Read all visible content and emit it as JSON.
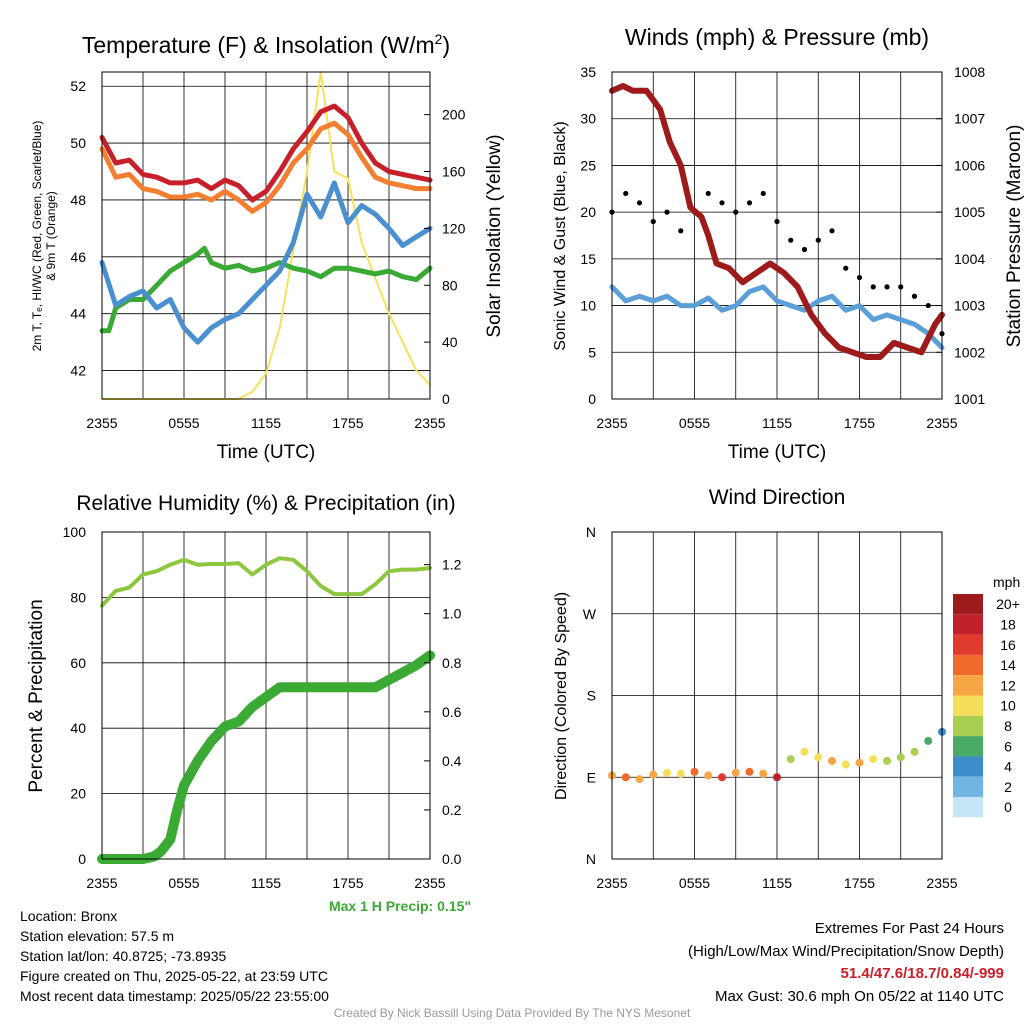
{
  "meta": {
    "location": "Location: Bronx",
    "elevation": "Station elevation: 57.5 m",
    "latlon": "Station lat/lon: 40.8725; -73.8935",
    "created": "Figure created on Thu, 2025-05-22, at 23:59 UTC",
    "recent": "Most recent data timestamp: 2025/05/22 23:55:00",
    "extremes_title": "Extremes For Past 24 Hours",
    "extremes_subtitle": "(High/Low/Max Wind/Precipitation/Snow Depth)",
    "extremes_values": "51.4/47.6/18.7/0.84/-999",
    "max_gust": "Max Gust: 30.6 mph On 05/22 at 1140 UTC",
    "credit": "Created By Nick Bassill Using Data Provided By The NYS Mesonet",
    "max_precip": "Max 1 H Precip: 0.15\""
  },
  "colors": {
    "temp2m": "#c8202a",
    "temp9m": "#f47f30",
    "dewpoint": "#3aaa35",
    "wetbulb": "#4a90cf",
    "insolation": "#f7e15a",
    "wind": "#5b9fd8",
    "gust": "#000000",
    "pressure": "#9e1b1b",
    "humidity": "#8dc63f",
    "precip": "#3aaa35"
  },
  "chart_data": [
    {
      "type": "line",
      "title": "Temperature (F) & Insolation (W/m",
      "title_sup": "2",
      "title_close": ")",
      "xlabel": "Time (UTC)",
      "ylabel_left": "2m T, Tₑ, HI/WC (Red, Green, Scarlet/Blue)",
      "ylabel_left2": "& 9m T (Orange)",
      "ylabel_right": "Solar Insolation (Yellow)",
      "x_ticks": [
        "2355",
        "0555",
        "1155",
        "1755",
        "2355"
      ],
      "y_left": {
        "min": 41,
        "max": 52.5,
        "ticks": [
          42,
          44,
          46,
          48,
          50,
          52
        ]
      },
      "y_right": {
        "min": 0,
        "max": 230,
        "ticks": [
          0,
          40,
          80,
          120,
          160,
          200
        ]
      },
      "series": [
        {
          "key": "insolation",
          "axis": "right",
          "x": [
            0,
            7,
            8,
            9,
            10,
            11,
            12,
            13,
            14,
            15,
            16,
            17,
            18,
            19,
            20,
            21,
            22,
            23,
            24
          ],
          "y": [
            0,
            0,
            0,
            0,
            0,
            5,
            18,
            50,
            105,
            160,
            230,
            160,
            155,
            110,
            85,
            60,
            40,
            20,
            10
          ]
        },
        {
          "key": "temp9m",
          "axis": "left",
          "x": [
            0,
            1,
            2,
            3,
            4,
            5,
            6,
            7,
            8,
            9,
            10,
            11,
            12,
            13,
            14,
            15,
            16,
            17,
            18,
            19,
            20,
            21,
            22,
            23,
            24
          ],
          "y": [
            49.8,
            48.8,
            48.9,
            48.4,
            48.3,
            48.1,
            48.1,
            48.2,
            48.0,
            48.3,
            48.0,
            47.6,
            47.9,
            48.5,
            49.3,
            49.8,
            50.5,
            50.7,
            50.3,
            49.5,
            48.8,
            48.6,
            48.5,
            48.4,
            48.4
          ]
        },
        {
          "key": "temp2m",
          "axis": "left",
          "x": [
            0,
            1,
            2,
            3,
            4,
            5,
            6,
            7,
            8,
            9,
            10,
            11,
            12,
            13,
            14,
            15,
            16,
            17,
            18,
            19,
            20,
            21,
            22,
            23,
            24
          ],
          "y": [
            50.2,
            49.3,
            49.4,
            48.9,
            48.8,
            48.6,
            48.6,
            48.7,
            48.4,
            48.7,
            48.5,
            48.0,
            48.3,
            49.0,
            49.8,
            50.4,
            51.1,
            51.3,
            50.9,
            50.0,
            49.3,
            49.0,
            48.9,
            48.8,
            48.7
          ]
        },
        {
          "key": "dewpoint",
          "axis": "left",
          "x": [
            0,
            0.5,
            1,
            2,
            3,
            4,
            5,
            6,
            7,
            7.5,
            8,
            9,
            10,
            11,
            12,
            13,
            14,
            15,
            16,
            17,
            18,
            19,
            20,
            21,
            22,
            23,
            24
          ],
          "y": [
            43.4,
            43.4,
            44.2,
            44.5,
            44.5,
            45.0,
            45.5,
            45.8,
            46.1,
            46.3,
            45.8,
            45.6,
            45.7,
            45.5,
            45.6,
            45.8,
            45.6,
            45.5,
            45.3,
            45.6,
            45.6,
            45.5,
            45.4,
            45.5,
            45.3,
            45.2,
            45.6
          ]
        },
        {
          "key": "wetbulb",
          "axis": "left",
          "x": [
            0,
            1,
            2,
            3,
            4,
            5,
            6,
            7,
            8,
            9,
            10,
            11,
            12,
            13,
            14,
            15,
            16,
            17,
            18,
            19,
            20,
            21,
            22,
            23,
            24
          ],
          "y": [
            45.8,
            44.3,
            44.6,
            44.8,
            44.2,
            44.5,
            43.5,
            43.0,
            43.5,
            43.8,
            44.0,
            44.5,
            45.0,
            45.5,
            46.5,
            48.2,
            47.4,
            48.6,
            47.2,
            47.8,
            47.5,
            47.0,
            46.4,
            46.7,
            47.0
          ]
        }
      ]
    },
    {
      "type": "line",
      "title": "Winds (mph) & Pressure (mb)",
      "xlabel": "Time (UTC)",
      "ylabel_left": "Sonic Wind & Gust (Blue, Black)",
      "ylabel_right": "Station Pressure (Maroon)",
      "x_ticks": [
        "2355",
        "0555",
        "1155",
        "1755",
        "2355"
      ],
      "y_left": {
        "min": 0,
        "max": 35,
        "ticks": [
          0,
          5,
          10,
          15,
          20,
          25,
          30,
          35
        ]
      },
      "y_right": {
        "min": 1001,
        "max": 1008,
        "ticks": [
          1001,
          1002,
          1003,
          1004,
          1005,
          1006,
          1007,
          1008
        ]
      },
      "series": [
        {
          "key": "wind",
          "axis": "left",
          "x": [
            0,
            1,
            2,
            3,
            4,
            5,
            6,
            7,
            8,
            9,
            10,
            11,
            12,
            13,
            14,
            15,
            16,
            17,
            18,
            19,
            20,
            21,
            22,
            23,
            24
          ],
          "y": [
            12,
            10.5,
            11,
            10.5,
            11,
            10,
            10,
            10.8,
            9.5,
            10,
            11.5,
            12,
            10.5,
            10,
            9.5,
            10.5,
            11,
            9.5,
            10,
            8.5,
            9,
            8.5,
            8,
            7,
            5.5
          ]
        },
        {
          "key": "gust",
          "axis": "left",
          "type": "scatter",
          "x": [
            0,
            1,
            2,
            3,
            4,
            5,
            6,
            7,
            8,
            9,
            10,
            11,
            12,
            13,
            14,
            15,
            16,
            17,
            18,
            19,
            20,
            21,
            22,
            23,
            24
          ],
          "y": [
            20,
            22,
            21,
            19,
            20,
            18,
            20,
            22,
            21,
            20,
            21,
            22,
            19,
            17,
            16,
            17,
            18,
            14,
            13,
            12,
            12,
            12,
            11,
            10,
            7
          ]
        },
        {
          "key": "pressure",
          "axis": "right",
          "x": [
            0,
            0.8,
            1.5,
            2.5,
            3.5,
            4.2,
            5,
            5.7,
            6.5,
            7,
            7.6,
            8.5,
            9.5,
            10.5,
            11.5,
            12.5,
            13.5,
            14.5,
            15.5,
            16.5,
            17.5,
            18.5,
            19.5,
            20.5,
            21.5,
            22.5,
            23.5,
            24
          ],
          "y": [
            1007.6,
            1007.7,
            1007.6,
            1007.6,
            1007.2,
            1006.5,
            1006.0,
            1005.1,
            1004.9,
            1004.5,
            1003.9,
            1003.8,
            1003.5,
            1003.7,
            1003.9,
            1003.7,
            1003.4,
            1002.8,
            1002.4,
            1002.1,
            1002.0,
            1001.9,
            1001.9,
            1002.2,
            1002.1,
            1002.0,
            1002.6,
            1002.8
          ]
        }
      ]
    },
    {
      "type": "line",
      "title": "Relative Humidity (%) & Precipitation (in)",
      "xlabel": "",
      "ylabel_left": "Percent & Precipitation",
      "x_ticks": [
        "2355",
        "0555",
        "1155",
        "1755",
        "2355"
      ],
      "y_left": {
        "min": 0,
        "max": 100,
        "ticks": [
          0,
          20,
          40,
          60,
          80,
          100
        ]
      },
      "y_right": {
        "min": 0,
        "max": 1.333,
        "ticks": [
          0.0,
          0.2,
          0.4,
          0.6,
          0.8,
          1.0,
          1.2
        ]
      },
      "y_right_labels": [
        "0.0",
        "0.2",
        "0.4",
        "0.6",
        "0.8",
        "1.0",
        "1.2"
      ],
      "series": [
        {
          "key": "humidity",
          "axis": "left",
          "x": [
            0,
            1,
            2,
            3,
            4,
            5,
            6,
            7,
            8,
            9,
            10,
            11,
            12,
            13,
            14,
            15,
            16,
            17,
            18,
            19,
            20,
            21,
            22,
            23,
            24
          ],
          "y": [
            77.5,
            82,
            83,
            87,
            88,
            90,
            91.5,
            90,
            90.2,
            90.2,
            90.5,
            87,
            90,
            92,
            91.5,
            88,
            83.5,
            81,
            81,
            81,
            84,
            88,
            88.5,
            88.5,
            89
          ]
        },
        {
          "key": "precip",
          "axis": "right",
          "x": [
            0,
            1,
            2,
            3,
            3.8,
            4.3,
            5,
            5.5,
            6,
            7,
            8,
            9,
            10,
            11,
            12,
            13,
            14,
            15,
            16,
            17,
            18,
            19,
            20,
            21,
            22,
            23,
            24
          ],
          "y": [
            0,
            0,
            0,
            0,
            0.01,
            0.03,
            0.08,
            0.2,
            0.3,
            0.4,
            0.48,
            0.54,
            0.56,
            0.62,
            0.66,
            0.7,
            0.7,
            0.7,
            0.7,
            0.7,
            0.7,
            0.7,
            0.7,
            0.73,
            0.76,
            0.79,
            0.83
          ]
        }
      ]
    },
    {
      "type": "scatter",
      "title": "Wind Direction",
      "ylabel_left": "Direction (Colored By Speed)",
      "x_ticks": [
        "2355",
        "0555",
        "1155",
        "1755",
        "2355"
      ],
      "y_labels": [
        "N",
        "E",
        "S",
        "W",
        "N"
      ],
      "colorbar": {
        "title": "mph",
        "labels": [
          "20+",
          "18",
          "16",
          "14",
          "12",
          "10",
          "8",
          "6",
          "4",
          "2",
          "0"
        ],
        "colors": [
          "#9e1b1b",
          "#c0202a",
          "#e03a2f",
          "#f06a2e",
          "#f7a645",
          "#f5de5a",
          "#a8cf4f",
          "#4aaa68",
          "#3b8cc8",
          "#6fb6e3",
          "#c5e4f6"
        ]
      },
      "points": {
        "x": [
          0,
          1,
          2,
          3,
          4,
          5,
          6,
          7,
          8,
          9,
          10,
          11,
          12,
          13,
          14,
          15,
          16,
          17,
          18,
          19,
          20,
          21,
          22,
          23,
          24
        ],
        "dir_deg": [
          92,
          90,
          88,
          93,
          95,
          94,
          96,
          92,
          90,
          95,
          96,
          94,
          90,
          110,
          118,
          112,
          108,
          104,
          106,
          110,
          108,
          112,
          118,
          130,
          140
        ],
        "speed": [
          12,
          13,
          11,
          12,
          9,
          10,
          14,
          11,
          16,
          12,
          13,
          12,
          17,
          7,
          9,
          10,
          11,
          10,
          12,
          9,
          8,
          8,
          8,
          6,
          4
        ]
      }
    }
  ]
}
